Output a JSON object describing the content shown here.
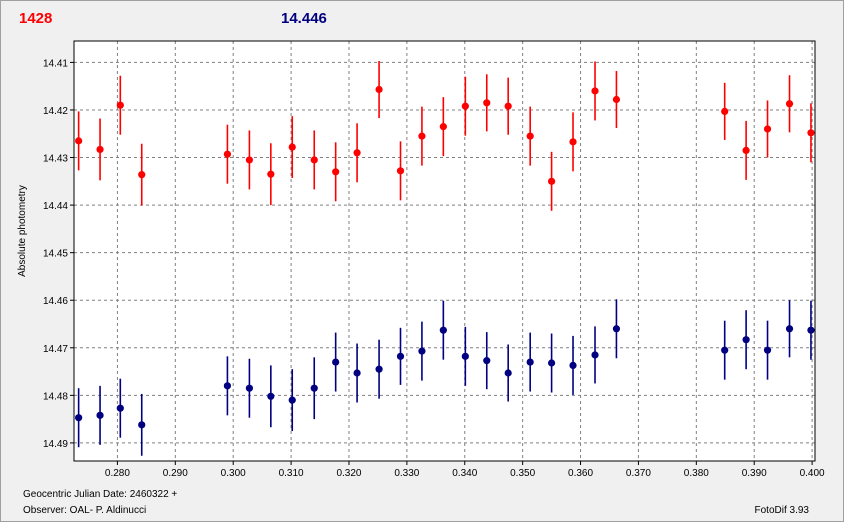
{
  "legend": {
    "series1_value": "1428",
    "series2_value": "14.446"
  },
  "footer": {
    "date_label": "Geocentric Julian Date: 2460322 +",
    "observer": "Observer: OAL- P. Aldinucci",
    "software": "FotoDif 3.93"
  },
  "chart_data": {
    "type": "scatter",
    "ylabel": "Absolute photometry",
    "xlabel": "",
    "title": "",
    "xlim": [
      0.2725,
      0.4005
    ],
    "ylim": [
      14.4055,
      14.4938
    ],
    "y_inverted": true,
    "grid": true,
    "x_ticks": [
      "0.280",
      "0.290",
      "0.300",
      "0.310",
      "0.320",
      "0.330",
      "0.340",
      "0.350",
      "0.360",
      "0.370",
      "0.380",
      "0.390",
      "0.400"
    ],
    "y_ticks": [
      "14.41",
      "14.42",
      "14.43",
      "14.44",
      "14.45",
      "14.46",
      "14.47",
      "14.48",
      "14.49"
    ],
    "series": [
      {
        "color": "#ff0000",
        "x": [
          0.2733,
          0.277,
          0.2805,
          0.2842,
          0.299,
          0.3028,
          0.3065,
          0.3102,
          0.314,
          0.3177,
          0.3214,
          0.3252,
          0.3289,
          0.3326,
          0.3363,
          0.3401,
          0.3438,
          0.3475,
          0.3513,
          0.355,
          0.3587,
          0.3625,
          0.3662,
          0.3849,
          0.3886,
          0.3923,
          0.3961,
          0.3998
        ],
        "y": [
          14.4265,
          14.4283,
          14.419,
          14.4336,
          14.4293,
          14.4305,
          14.4335,
          14.4278,
          14.4305,
          14.433,
          14.429,
          14.4157,
          14.4328,
          14.4255,
          14.4235,
          14.4192,
          14.4185,
          14.4192,
          14.4255,
          14.435,
          14.4267,
          14.416,
          14.4178,
          14.4203,
          14.4285,
          14.424,
          14.4187,
          14.4248
        ],
        "err": [
          0.0062,
          0.0065,
          0.0062,
          0.0065,
          0.0062,
          0.0062,
          0.0065,
          0.0065,
          0.0062,
          0.0062,
          0.0062,
          0.006,
          0.0062,
          0.0062,
          0.0062,
          0.0062,
          0.006,
          0.006,
          0.0062,
          0.0062,
          0.0062,
          0.0062,
          0.006,
          0.006,
          0.0062,
          0.006,
          0.006,
          0.0062
        ]
      },
      {
        "color": "#000080",
        "x": [
          0.2733,
          0.277,
          0.2805,
          0.2842,
          0.299,
          0.3028,
          0.3065,
          0.3102,
          0.314,
          0.3177,
          0.3214,
          0.3252,
          0.3289,
          0.3326,
          0.3363,
          0.3401,
          0.3438,
          0.3475,
          0.3513,
          0.355,
          0.3587,
          0.3625,
          0.3662,
          0.3849,
          0.3886,
          0.3923,
          0.3961,
          0.3998
        ],
        "y": [
          14.4847,
          14.4842,
          14.4827,
          14.4862,
          14.478,
          14.4785,
          14.4802,
          14.481,
          14.4785,
          14.473,
          14.4753,
          14.4745,
          14.4718,
          14.4707,
          14.4663,
          14.4718,
          14.4727,
          14.4753,
          14.473,
          14.4732,
          14.4737,
          14.4715,
          14.466,
          14.4705,
          14.4683,
          14.4705,
          14.466,
          14.4663
        ],
        "err": [
          0.0062,
          0.0062,
          0.0062,
          0.0065,
          0.0062,
          0.0062,
          0.0065,
          0.0065,
          0.0065,
          0.0062,
          0.0062,
          0.0062,
          0.006,
          0.0062,
          0.0062,
          0.0062,
          0.006,
          0.006,
          0.0062,
          0.0062,
          0.0062,
          0.006,
          0.0062,
          0.0062,
          0.0062,
          0.0062,
          0.006,
          0.0062
        ]
      }
    ]
  }
}
